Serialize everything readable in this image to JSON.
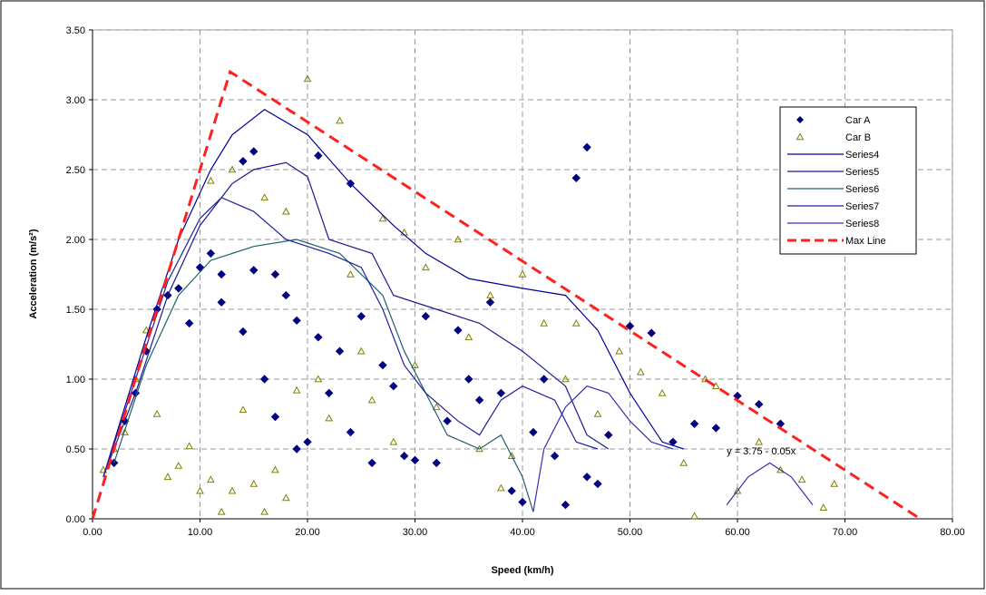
{
  "chart_data": {
    "type": "scatter",
    "x_label": "Speed (km/h)",
    "y_label": "Acceleration (m/s²)",
    "annotation": "y = 3.75 - 0.05x",
    "xlim": [
      0,
      80
    ],
    "ylim": [
      0,
      3.5
    ],
    "xticks": [
      {
        "value": 0,
        "label": "0.00"
      },
      {
        "value": 10,
        "label": "10.00"
      },
      {
        "value": 20,
        "label": "20.00"
      },
      {
        "value": 30,
        "label": "30.00"
      },
      {
        "value": 40,
        "label": "40.00"
      },
      {
        "value": 50,
        "label": "50.00"
      },
      {
        "value": 60,
        "label": "60.00"
      },
      {
        "value": 70,
        "label": "70.00"
      },
      {
        "value": 80,
        "label": "80.00"
      }
    ],
    "yticks": [
      {
        "value": 0,
        "label": "0.00"
      },
      {
        "value": 0.5,
        "label": "0.50"
      },
      {
        "value": 1,
        "label": "1.00"
      },
      {
        "value": 1.5,
        "label": "1.50"
      },
      {
        "value": 2,
        "label": "2.00"
      },
      {
        "value": 2.5,
        "label": "2.50"
      },
      {
        "value": 3,
        "label": "3.00"
      },
      {
        "value": 3.5,
        "label": "3.50"
      }
    ],
    "grid": true,
    "legend": "top-right",
    "series": [
      {
        "name": "Car A",
        "color": "#000080",
        "marker": "diamond",
        "x": [
          2,
          3,
          4,
          5,
          6,
          7,
          8,
          9,
          10,
          11,
          12,
          12,
          14,
          15,
          16,
          17,
          17,
          18,
          19,
          19,
          20,
          21,
          22,
          23,
          24,
          25,
          26,
          27,
          28,
          29,
          30,
          31,
          32,
          33,
          34,
          35,
          36,
          37,
          38,
          39,
          40,
          41,
          42,
          43,
          44,
          45,
          46,
          46,
          47,
          48,
          50,
          52,
          54,
          56,
          58,
          60,
          62,
          64,
          15,
          14,
          21,
          24
        ],
        "values": [
          0.4,
          0.7,
          0.9,
          1.2,
          1.5,
          1.6,
          1.65,
          1.4,
          1.8,
          1.9,
          1.55,
          1.75,
          1.34,
          1.78,
          1.0,
          0.73,
          1.75,
          1.6,
          0.5,
          1.42,
          0.55,
          1.3,
          0.9,
          1.2,
          0.62,
          1.45,
          0.4,
          1.1,
          0.95,
          0.45,
          0.42,
          1.45,
          0.4,
          0.7,
          1.35,
          1.0,
          0.85,
          1.55,
          0.9,
          0.2,
          0.12,
          0.62,
          1.0,
          0.45,
          0.1,
          2.44,
          2.66,
          0.3,
          0.25,
          0.6,
          1.38,
          1.33,
          0.55,
          0.68,
          0.65,
          0.88,
          0.82,
          0.68,
          2.63,
          2.56,
          2.6,
          2.4
        ]
      },
      {
        "name": "Car B",
        "color": "#808000",
        "marker": "triangle",
        "x": [
          1,
          2,
          3,
          4,
          5,
          6,
          7,
          8,
          9,
          10,
          11,
          12,
          13,
          14,
          15,
          16,
          17,
          18,
          19,
          20,
          21,
          22,
          23,
          24,
          25,
          26,
          27,
          28,
          29,
          30,
          31,
          32,
          34,
          35,
          36,
          37,
          38,
          39,
          40,
          42,
          44,
          45,
          47,
          49,
          51,
          53,
          55,
          56,
          57,
          58,
          60,
          62,
          64,
          66,
          68,
          69,
          13,
          16,
          18,
          11
        ],
        "values": [
          0.35,
          0.5,
          0.62,
          1.0,
          1.35,
          0.75,
          0.3,
          0.38,
          0.52,
          0.2,
          0.28,
          0.05,
          0.2,
          0.78,
          0.25,
          0.05,
          0.35,
          0.15,
          0.92,
          3.15,
          1.0,
          0.72,
          2.85,
          1.75,
          1.2,
          0.85,
          2.15,
          0.55,
          2.05,
          1.1,
          1.8,
          0.8,
          2.0,
          1.3,
          0.5,
          1.6,
          0.22,
          0.45,
          1.75,
          1.4,
          1.0,
          1.4,
          0.75,
          1.2,
          1.05,
          0.9,
          0.4,
          0.02,
          1.0,
          0.95,
          0.2,
          0.55,
          0.35,
          0.28,
          0.08,
          0.25,
          2.5,
          2.3,
          2.2,
          2.42
        ]
      },
      {
        "name": "Series4",
        "color": "#000099",
        "marker": "line",
        "x": [
          1,
          3,
          5,
          8,
          11,
          13,
          16,
          20,
          24,
          28,
          31,
          35,
          40,
          44,
          47,
          50,
          53,
          55
        ],
        "values": [
          0.3,
          0.8,
          1.3,
          2.0,
          2.5,
          2.75,
          2.93,
          2.75,
          2.4,
          2.1,
          1.9,
          1.72,
          1.65,
          1.6,
          1.35,
          0.9,
          0.55,
          0.5
        ]
      },
      {
        "name": "Series5",
        "color": "#1a1a8c",
        "marker": "line",
        "x": [
          1,
          4,
          7,
          10,
          13,
          15,
          18,
          20,
          22,
          26,
          28,
          32,
          36,
          40,
          44,
          46,
          48
        ],
        "values": [
          0.3,
          0.9,
          1.6,
          2.1,
          2.4,
          2.5,
          2.55,
          2.45,
          2.0,
          1.9,
          1.6,
          1.5,
          1.4,
          1.2,
          0.95,
          0.6,
          0.5
        ]
      },
      {
        "name": "Series6",
        "color": "#1f5f6f",
        "marker": "line",
        "x": [
          2,
          5,
          8,
          11,
          15,
          19,
          23,
          27,
          29,
          31,
          33,
          36,
          38,
          40,
          41
        ],
        "values": [
          0.4,
          1.1,
          1.6,
          1.85,
          1.95,
          2.0,
          1.9,
          1.6,
          1.2,
          0.9,
          0.6,
          0.5,
          0.6,
          0.3,
          0.05
        ]
      },
      {
        "name": "Series7",
        "color": "#2020a0",
        "marker": "line",
        "x": [
          1,
          4,
          7,
          10,
          12,
          15,
          18,
          22,
          25,
          27,
          29,
          31,
          34,
          36,
          38,
          40,
          43,
          45,
          47
        ],
        "values": [
          0.3,
          1.0,
          1.7,
          2.15,
          2.3,
          2.2,
          2.0,
          1.9,
          1.8,
          1.5,
          1.1,
          0.9,
          0.7,
          0.6,
          0.85,
          0.95,
          0.85,
          0.55,
          0.5
        ]
      },
      {
        "name": "Series8",
        "color": "#3030b0",
        "marker": "line",
        "x": [
          41,
          42,
          44,
          46,
          48,
          50,
          52,
          54,
          56,
          59,
          61,
          63,
          65,
          67
        ],
        "values": [
          0.05,
          0.5,
          0.8,
          0.95,
          0.9,
          0.7,
          0.55,
          0.5,
          null,
          0.1,
          0.3,
          0.4,
          0.3,
          0.1
        ]
      },
      {
        "name": "Max Line",
        "color": "#ff2020",
        "marker": "dashed",
        "x": [
          0,
          12.8,
          77
        ],
        "values": [
          0,
          3.2,
          0
        ]
      }
    ]
  }
}
